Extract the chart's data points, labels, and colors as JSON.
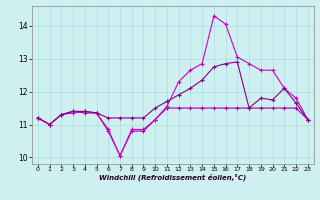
{
  "xlabel": "Windchill (Refroidissement éolien,°C)",
  "bg_color": "#cff0f0",
  "grid_color": "#aadddd",
  "xlim": [
    -0.5,
    23.5
  ],
  "ylim": [
    9.8,
    14.6
  ],
  "yticks": [
    10,
    11,
    12,
    13,
    14
  ],
  "xticks": [
    0,
    1,
    2,
    3,
    4,
    5,
    6,
    7,
    8,
    9,
    10,
    11,
    12,
    13,
    14,
    15,
    16,
    17,
    18,
    19,
    20,
    21,
    22,
    23
  ],
  "series": [
    {
      "color": "#aa00aa",
      "x": [
        0,
        1,
        2,
        3,
        4,
        5,
        6,
        7,
        8,
        9,
        10,
        11,
        12,
        13,
        14,
        15,
        16,
        17,
        18,
        19,
        20,
        21,
        22,
        23
      ],
      "y": [
        11.2,
        11.0,
        11.3,
        11.4,
        11.35,
        11.35,
        10.8,
        10.05,
        10.8,
        10.8,
        11.15,
        11.5,
        11.5,
        11.5,
        11.5,
        11.5,
        11.5,
        11.5,
        11.5,
        11.5,
        11.5,
        11.5,
        11.5,
        11.15
      ]
    },
    {
      "color": "#cc00cc",
      "x": [
        0,
        1,
        2,
        3,
        4,
        5,
        6,
        7,
        8,
        9,
        10,
        11,
        12,
        13,
        14,
        15,
        16,
        17,
        18,
        19,
        20,
        21,
        22,
        23
      ],
      "y": [
        11.2,
        11.0,
        11.3,
        11.35,
        11.4,
        11.35,
        10.85,
        10.05,
        10.85,
        10.85,
        11.15,
        11.55,
        12.3,
        12.65,
        12.85,
        14.3,
        14.05,
        13.05,
        12.85,
        12.65,
        12.65,
        12.1,
        11.8,
        11.15
      ]
    },
    {
      "color": "#880088",
      "x": [
        0,
        1,
        2,
        3,
        4,
        5,
        6,
        7,
        8,
        9,
        10,
        11,
        12,
        13,
        14,
        15,
        16,
        17,
        18,
        19,
        20,
        21,
        22,
        23
      ],
      "y": [
        11.2,
        11.0,
        11.3,
        11.4,
        11.4,
        11.35,
        11.2,
        11.2,
        11.2,
        11.2,
        11.5,
        11.7,
        11.9,
        12.1,
        12.35,
        12.75,
        12.85,
        12.9,
        11.5,
        11.8,
        11.75,
        12.1,
        11.65,
        11.15
      ]
    }
  ]
}
